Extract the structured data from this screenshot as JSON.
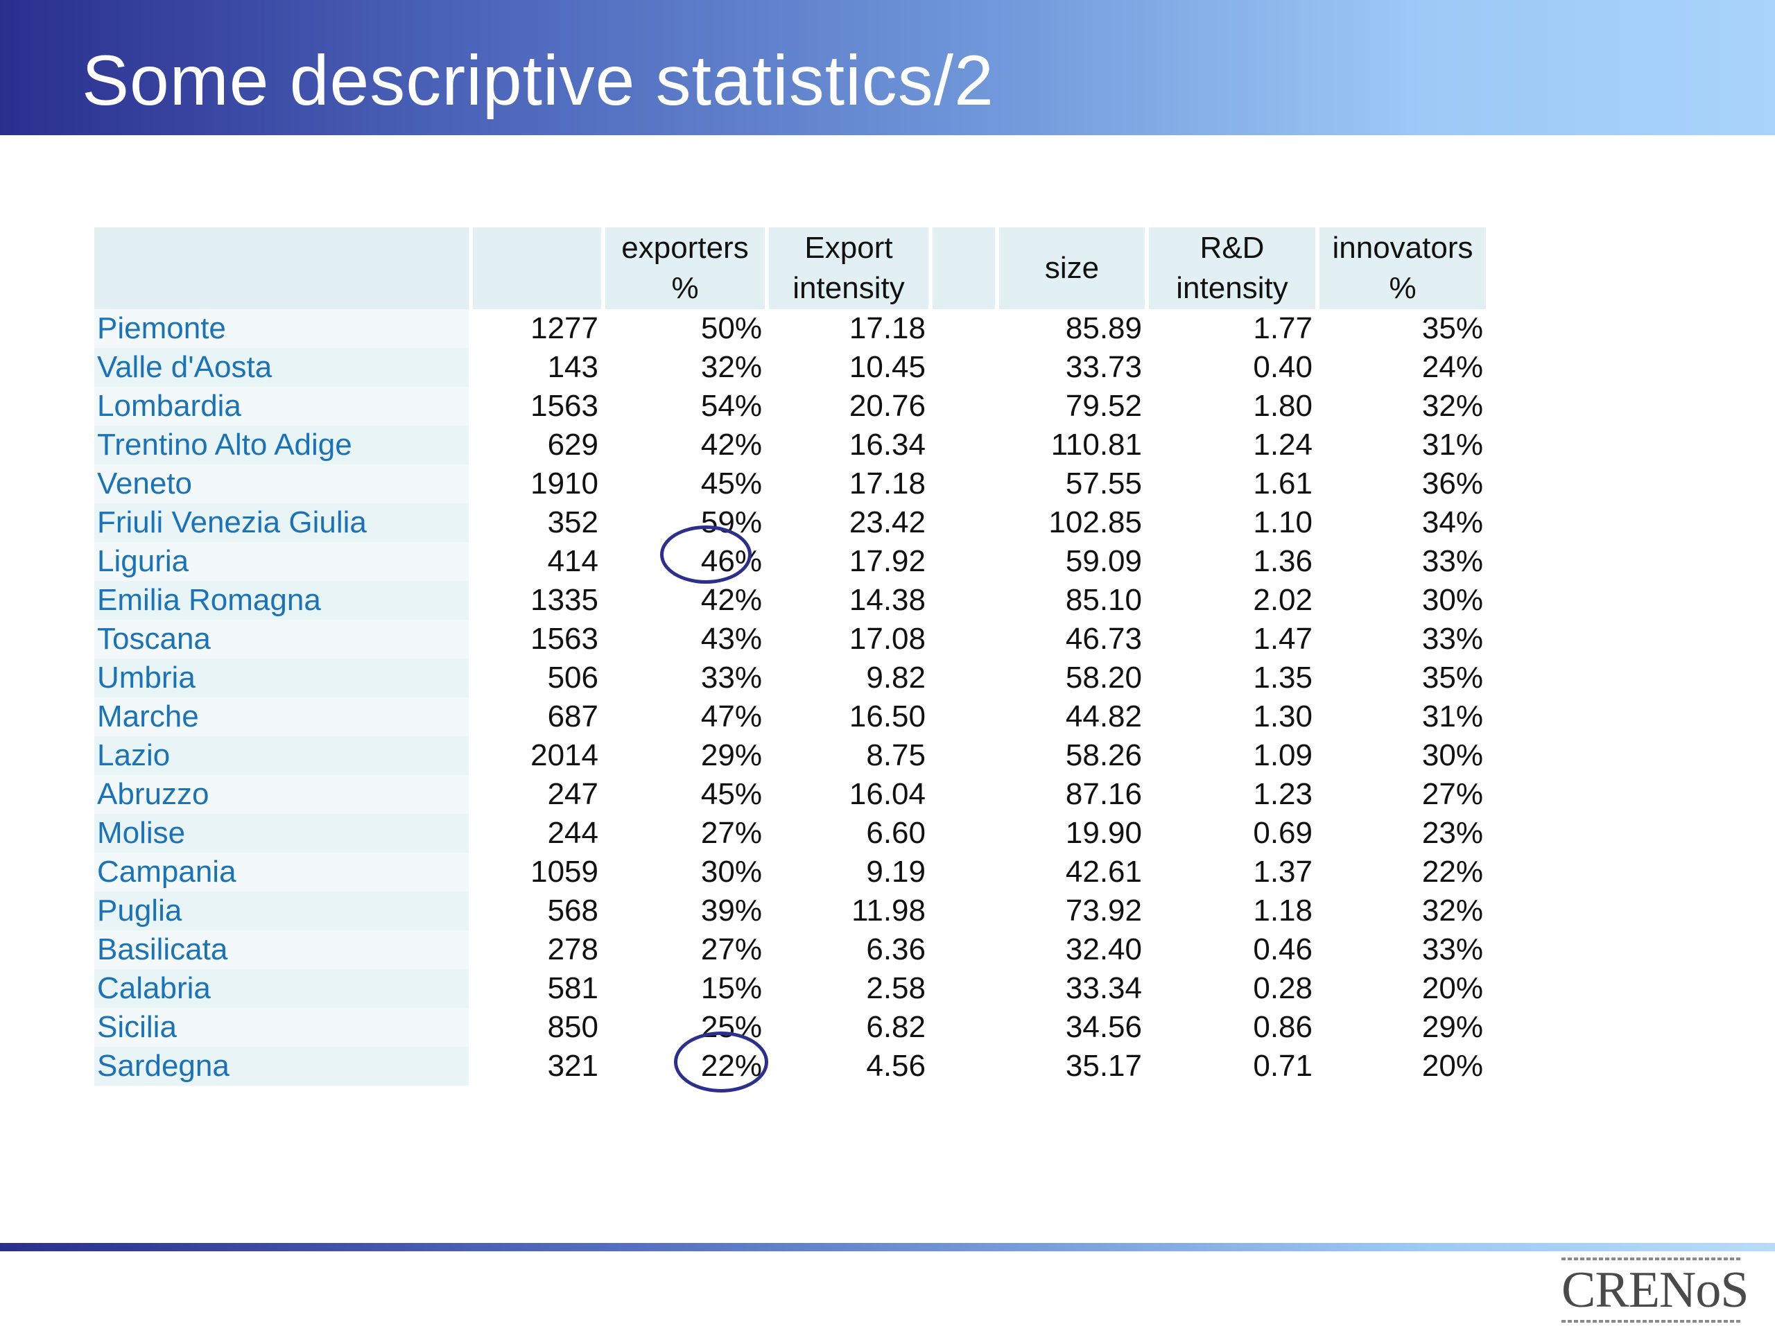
{
  "title": "Some descriptive statistics/2",
  "table": {
    "headers": [
      "",
      "",
      "exporters %",
      "Export intensity",
      "",
      "size",
      "R&D intensity",
      "innovators %"
    ],
    "rows": [
      [
        "Piemonte",
        "1277",
        "50%",
        "17.18",
        "",
        "85.89",
        "1.77",
        "35%"
      ],
      [
        "Valle d'Aosta",
        "143",
        "32%",
        "10.45",
        "",
        "33.73",
        "0.40",
        "24%"
      ],
      [
        "Lombardia",
        "1563",
        "54%",
        "20.76",
        "",
        "79.52",
        "1.80",
        "32%"
      ],
      [
        "Trentino Alto Adige",
        "629",
        "42%",
        "16.34",
        "",
        "110.81",
        "1.24",
        "31%"
      ],
      [
        "Veneto",
        "1910",
        "45%",
        "17.18",
        "",
        "57.55",
        "1.61",
        "36%"
      ],
      [
        "Friuli Venezia Giulia",
        "352",
        "59%",
        "23.42",
        "",
        "102.85",
        "1.10",
        "34%"
      ],
      [
        "Liguria",
        "414",
        "46%",
        "17.92",
        "",
        "59.09",
        "1.36",
        "33%"
      ],
      [
        "Emilia Romagna",
        "1335",
        "42%",
        "14.38",
        "",
        "85.10",
        "2.02",
        "30%"
      ],
      [
        "Toscana",
        "1563",
        "43%",
        "17.08",
        "",
        "46.73",
        "1.47",
        "33%"
      ],
      [
        "Umbria",
        "506",
        "33%",
        "9.82",
        "",
        "58.20",
        "1.35",
        "35%"
      ],
      [
        "Marche",
        "687",
        "47%",
        "16.50",
        "",
        "44.82",
        "1.30",
        "31%"
      ],
      [
        "Lazio",
        "2014",
        "29%",
        "8.75",
        "",
        "58.26",
        "1.09",
        "30%"
      ],
      [
        "Abruzzo",
        "247",
        "45%",
        "16.04",
        "",
        "87.16",
        "1.23",
        "27%"
      ],
      [
        "Molise",
        "244",
        "27%",
        "6.60",
        "",
        "19.90",
        "0.69",
        "23%"
      ],
      [
        "Campania",
        "1059",
        "30%",
        "9.19",
        "",
        "42.61",
        "1.37",
        "22%"
      ],
      [
        "Puglia",
        "568",
        "39%",
        "11.98",
        "",
        "73.92",
        "1.18",
        "32%"
      ],
      [
        "Basilicata",
        "278",
        "27%",
        "6.36",
        "",
        "32.40",
        "0.46",
        "33%"
      ],
      [
        "Calabria",
        "581",
        "15%",
        "2.58",
        "",
        "33.34",
        "0.28",
        "20%"
      ],
      [
        "Sicilia",
        "850",
        "25%",
        "6.82",
        "",
        "34.56",
        "0.86",
        "29%"
      ],
      [
        "Sardegna",
        "321",
        "22%",
        "4.56",
        "",
        "35.17",
        "0.71",
        "20%"
      ]
    ]
  },
  "logo": {
    "text": "CRENoS"
  },
  "colors": {
    "title_bar_start": "#2a2f8e",
    "title_bar_end": "#a9d3fa",
    "region_text": "#1a73b8",
    "header_bg": "#e3f0f3",
    "circle": "#2d2f8c"
  }
}
